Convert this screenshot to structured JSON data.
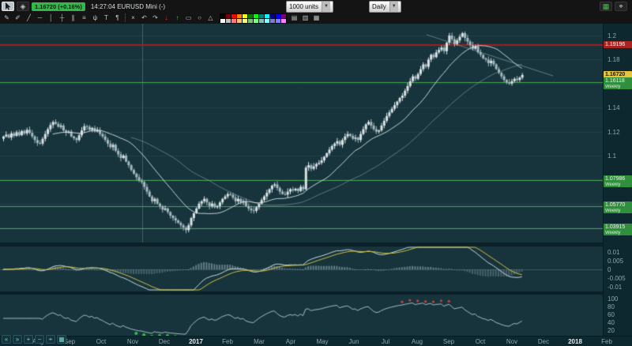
{
  "toolbar": {
    "price_badge": {
      "text": "1.16720 (+0.16%)",
      "bg": "#35b84a"
    },
    "symbol_info": "14:27:04 EURUSD Mini (-)",
    "units_label": "1000 units",
    "timeframe_label": "Daily",
    "tools_left": [
      {
        "name": "pencil-tool",
        "glyph": "✎"
      },
      {
        "name": "marker-tool",
        "glyph": "✐"
      },
      {
        "name": "trendline-tool",
        "glyph": "╱"
      },
      {
        "name": "horizontal-line-tool",
        "glyph": "─"
      },
      {
        "name": "vertical-line-tool",
        "glyph": "│"
      },
      {
        "name": "crosshair-tool",
        "glyph": "┼"
      },
      {
        "name": "channel-tool",
        "glyph": "∥"
      },
      {
        "name": "fibonacci-tool",
        "glyph": "≡"
      },
      {
        "name": "pitchfork-tool",
        "glyph": "ψ"
      },
      {
        "name": "text-tool",
        "glyph": "T"
      },
      {
        "name": "annotation-tool",
        "glyph": "¶"
      }
    ],
    "tools_mid": [
      {
        "name": "delete-drawing-button",
        "glyph": "×"
      },
      {
        "name": "undo-button",
        "glyph": "↶"
      },
      {
        "name": "redo-button",
        "glyph": "↷"
      },
      {
        "name": "sell-marker-tool",
        "glyph": "↓",
        "color": "#e04038"
      },
      {
        "name": "buy-marker-tool",
        "glyph": "↑",
        "color": "#3ecb50"
      },
      {
        "name": "rectangle-tool",
        "glyph": "▭"
      },
      {
        "name": "ellipse-tool",
        "glyph": "○"
      },
      {
        "name": "triangle-tool",
        "glyph": "△"
      }
    ],
    "chart_type_buttons": [
      {
        "name": "bars-style-button",
        "glyph": "▤"
      },
      {
        "name": "candles-style-button",
        "glyph": "▥"
      },
      {
        "name": "area-style-button",
        "glyph": "▦"
      }
    ],
    "palette": [
      "#000000",
      "#7f0000",
      "#ff0000",
      "#ff7f00",
      "#ffff00",
      "#007f00",
      "#00ff00",
      "#007f7f",
      "#00ffff",
      "#00007f",
      "#0000ff",
      "#7f007f",
      "#ffffff",
      "#bfbfbf",
      "#ff7f7f",
      "#ffbf7f",
      "#ffff7f",
      "#7fbf7f",
      "#7fff7f",
      "#7fbfbf",
      "#7fffff",
      "#7f7fbf",
      "#7f7fff",
      "#ff7fff"
    ],
    "right_buttons": [
      {
        "name": "layout-grid-button",
        "glyph": "▦",
        "color": "#46c24e"
      },
      {
        "name": "zoom-search-button",
        "glyph": "⌖",
        "color": "#cfd8da"
      }
    ]
  },
  "chart": {
    "price_axis_labels": [
      "1.2",
      "1.18",
      "1.16",
      "1.14",
      "1.12",
      "1.1",
      "1.08",
      "1.06",
      "1.04"
    ],
    "macd_axis_labels": [
      "0.01",
      "0.005",
      "0",
      "-0.005",
      "-0.01"
    ],
    "rsi_axis_labels": [
      "100",
      "80",
      "60",
      "40",
      "20"
    ],
    "time_axis_labels": [
      "Aug",
      "Sep",
      "Oct",
      "Nov",
      "Dec",
      "2017",
      "Feb",
      "Mar",
      "Apr",
      "May",
      "Jun",
      "Jul",
      "Aug",
      "Sep",
      "Oct",
      "Nov",
      "Dec",
      "2018",
      "Feb"
    ],
    "price_tags": {
      "resistance": {
        "label": "1.19196",
        "price": 1.19196
      },
      "current": {
        "label": "1.16720",
        "price": 1.1672
      },
      "weekly_levels": [
        {
          "label": "1.16118",
          "sub": "Weekly",
          "price": 1.16118
        },
        {
          "label": "1.07986",
          "sub": "Weekly",
          "price": 1.07986
        },
        {
          "label": "1.05770",
          "sub": "Weekly",
          "price": 1.0577
        },
        {
          "label": "1.03915",
          "sub": "Weekly",
          "price": 1.03915
        }
      ]
    }
  },
  "chart_data": {
    "type": "candlestick",
    "symbol": "EURUSD Mini",
    "timeframe": "Daily",
    "units": "1000 units",
    "last_price": 1.1672,
    "change_pct": "+0.16%",
    "price_axis_range": [
      1.03,
      1.21
    ],
    "levels": {
      "resistance": 1.19196,
      "weekly_support": [
        1.16118,
        1.07986,
        1.0577,
        1.03915
      ]
    },
    "indicators": [
      {
        "name": "MACD",
        "ticks": [
          0.01,
          0.005,
          0,
          -0.005,
          -0.01
        ]
      },
      {
        "name": "RSI",
        "ticks": [
          100,
          80,
          60,
          40,
          20
        ]
      }
    ],
    "x_range": [
      "Aug 2016",
      "Feb 2018"
    ],
    "closes": [
      1.116,
      1.1175,
      1.115,
      1.1185,
      1.1165,
      1.1195,
      1.117,
      1.1205,
      1.1185,
      1.1215,
      1.119,
      1.116,
      1.113,
      1.1105,
      1.11,
      1.114,
      1.118,
      1.122,
      1.1255,
      1.128,
      1.1265,
      1.124,
      1.125,
      1.121,
      1.119,
      1.12,
      1.116,
      1.1145,
      1.113,
      1.117,
      1.121,
      1.1245,
      1.124,
      1.1215,
      1.123,
      1.12,
      1.121,
      1.118,
      1.116,
      1.113,
      1.11,
      1.107,
      1.109,
      1.104,
      1.101,
      1.098,
      1.1,
      1.095,
      1.092,
      1.088,
      1.085,
      1.082,
      1.079,
      1.078,
      1.074,
      1.07,
      1.066,
      1.062,
      1.064,
      1.06,
      1.058,
      1.055,
      1.056,
      1.053,
      1.05,
      1.048,
      1.046,
      1.044,
      1.042,
      1.04,
      1.038,
      1.042,
      1.048,
      1.052,
      1.056,
      1.06,
      1.062,
      1.064,
      1.061,
      1.058,
      1.06,
      1.057,
      1.058,
      1.061,
      1.064,
      1.066,
      1.068,
      1.0675,
      1.065,
      1.062,
      1.064,
      1.061,
      1.062,
      1.058,
      1.056,
      1.0545,
      1.054,
      1.057,
      1.06,
      1.063,
      1.066,
      1.069,
      1.072,
      1.075,
      1.076,
      1.073,
      1.07,
      1.068,
      1.0675,
      1.07,
      1.072,
      1.071,
      1.0725,
      1.0705,
      1.074,
      1.072,
      1.09,
      1.092,
      1.089,
      1.091,
      1.093,
      1.094,
      1.096,
      1.099,
      1.102,
      1.105,
      1.108,
      1.11,
      1.112,
      1.109,
      1.113,
      1.116,
      1.118,
      1.1165,
      1.114,
      1.115,
      1.113,
      1.118,
      1.122,
      1.126,
      1.128,
      1.125,
      1.122,
      1.12,
      1.121,
      1.125,
      1.129,
      1.133,
      1.136,
      1.139,
      1.142,
      1.145,
      1.148,
      1.15,
      1.154,
      1.158,
      1.162,
      1.166,
      1.164,
      1.168,
      1.172,
      1.176,
      1.174,
      1.18,
      1.184,
      1.182,
      1.186,
      1.188,
      1.19,
      1.187,
      1.194,
      1.2,
      1.197,
      1.193,
      1.196,
      1.199,
      1.202,
      1.198,
      1.195,
      1.192,
      1.189,
      1.191,
      1.186,
      1.184,
      1.181,
      1.18,
      1.177,
      1.179,
      1.176,
      1.172,
      1.169,
      1.166,
      1.163,
      1.161,
      1.16,
      1.162,
      1.164,
      1.163,
      1.165,
      1.1672
    ]
  },
  "bottom_toolbar": [
    {
      "name": "scroll-left-button",
      "glyph": "«"
    },
    {
      "name": "scroll-right-button",
      "glyph": "»"
    },
    {
      "name": "zoom-in-button",
      "glyph": "+"
    },
    {
      "name": "zoom-out-button",
      "glyph": "−"
    },
    {
      "name": "magnifier-button",
      "glyph": "⌖"
    },
    {
      "name": "fit-chart-button",
      "glyph": "▦"
    }
  ]
}
